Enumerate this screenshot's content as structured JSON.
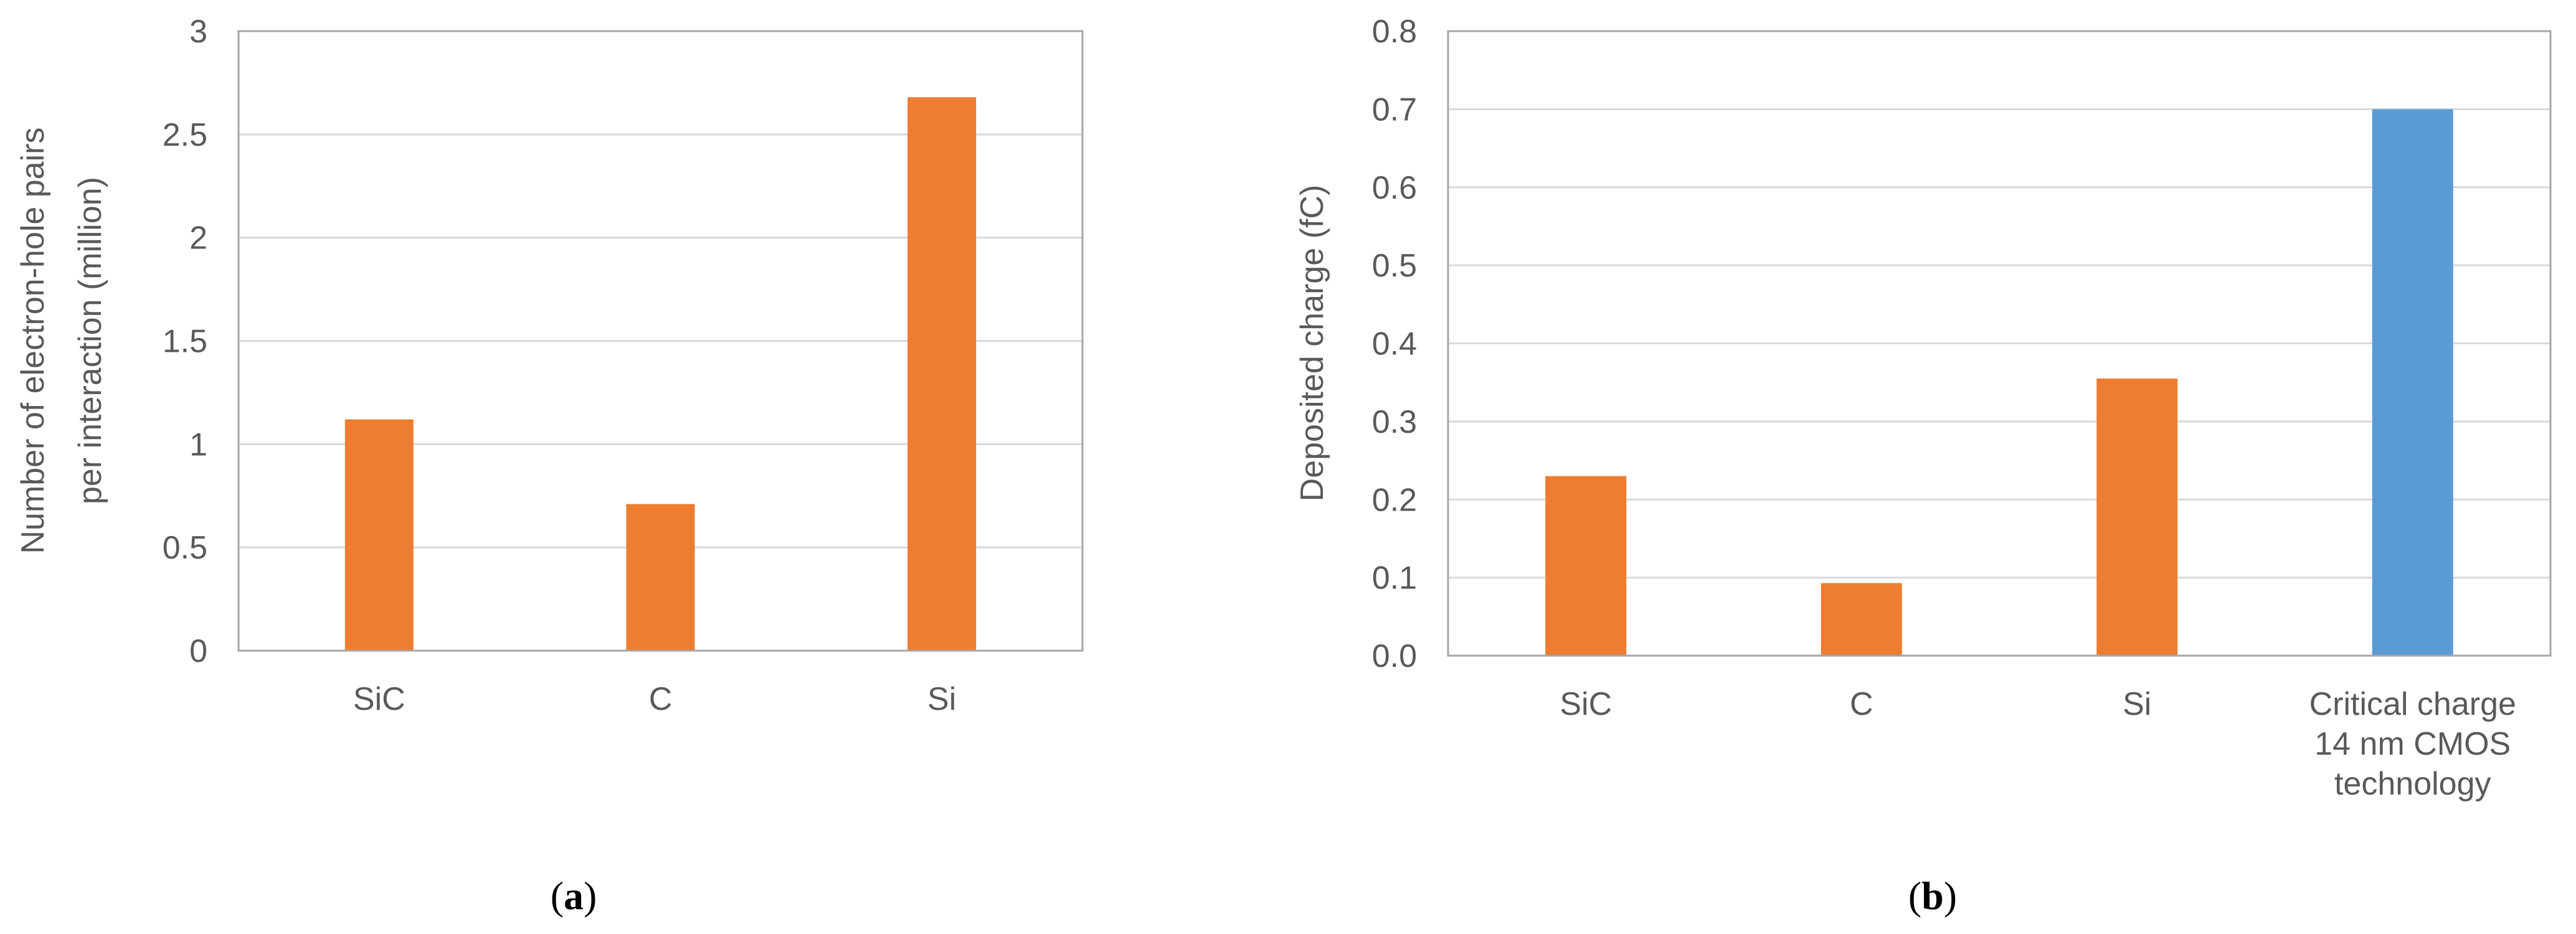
{
  "chart_data": [
    {
      "type": "bar",
      "panel_label": "a",
      "categories": [
        "SiC",
        "C",
        "Si"
      ],
      "values": [
        1.12,
        0.71,
        2.68
      ],
      "ylabel_lines": [
        "Number of electron-hole pairs",
        "per interaction (million)"
      ],
      "ylim": [
        0,
        3
      ],
      "yticks": [
        0,
        0.5,
        1,
        1.5,
        2,
        2.5,
        3
      ],
      "ytick_labels": [
        "0",
        "0.5",
        "1",
        "1.5",
        "2",
        "2.5",
        "3"
      ],
      "grid": true,
      "bar_color": "#ED7D31"
    },
    {
      "type": "bar",
      "panel_label": "b",
      "categories": [
        [
          "SiC"
        ],
        [
          "C"
        ],
        [
          "Si"
        ],
        [
          "Critical charge",
          "14 nm CMOS",
          "technology"
        ]
      ],
      "values": [
        0.23,
        0.093,
        0.355,
        0.7
      ],
      "ylabel_lines": [
        "Deposited charge (fC)"
      ],
      "ylim": [
        0,
        0.8
      ],
      "yticks": [
        0,
        0.1,
        0.2,
        0.3,
        0.4,
        0.5,
        0.6,
        0.7,
        0.8
      ],
      "ytick_labels": [
        "0.0",
        "0.1",
        "0.2",
        "0.3",
        "0.4",
        "0.5",
        "0.6",
        "0.7",
        "0.8"
      ],
      "grid": true,
      "bar_colors": [
        "#ED7D31",
        "#ED7D31",
        "#ED7D31",
        "#5B9BD5"
      ]
    }
  ]
}
